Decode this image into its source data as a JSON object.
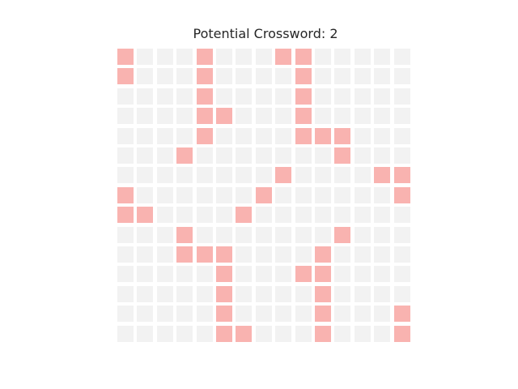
{
  "title": "Potential Crossword: 2",
  "colors": {
    "empty": "#f2f2f2",
    "filled": "#f9b3b0",
    "background": "#ffffff"
  },
  "grid": {
    "rows": 15,
    "cols": 15,
    "filled": [
      [
        0,
        0
      ],
      [
        0,
        4
      ],
      [
        0,
        8
      ],
      [
        0,
        9
      ],
      [
        1,
        0
      ],
      [
        1,
        4
      ],
      [
        1,
        9
      ],
      [
        2,
        4
      ],
      [
        2,
        9
      ],
      [
        3,
        4
      ],
      [
        3,
        5
      ],
      [
        3,
        9
      ],
      [
        4,
        4
      ],
      [
        4,
        9
      ],
      [
        4,
        10
      ],
      [
        4,
        11
      ],
      [
        5,
        3
      ],
      [
        5,
        11
      ],
      [
        6,
        8
      ],
      [
        6,
        13
      ],
      [
        6,
        14
      ],
      [
        7,
        0
      ],
      [
        7,
        7
      ],
      [
        7,
        14
      ],
      [
        8,
        0
      ],
      [
        8,
        1
      ],
      [
        8,
        6
      ],
      [
        9,
        3
      ],
      [
        9,
        11
      ],
      [
        10,
        3
      ],
      [
        10,
        4
      ],
      [
        10,
        5
      ],
      [
        10,
        10
      ],
      [
        11,
        5
      ],
      [
        11,
        9
      ],
      [
        11,
        10
      ],
      [
        12,
        5
      ],
      [
        12,
        10
      ],
      [
        13,
        5
      ],
      [
        13,
        10
      ],
      [
        13,
        14
      ],
      [
        14,
        5
      ],
      [
        14,
        6
      ],
      [
        14,
        10
      ],
      [
        14,
        14
      ]
    ]
  }
}
